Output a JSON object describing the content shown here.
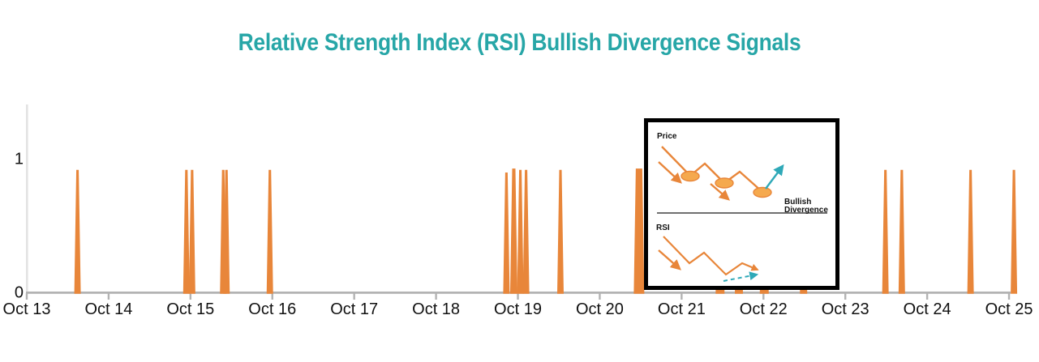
{
  "page": {
    "background": "#FFFFFF"
  },
  "chart_data": {
    "type": "bar",
    "title": "Relative Strength Index (RSI) Bullish Divergence Signals",
    "title_color": "#27A6A7",
    "bar_color": "#E8863A",
    "axis_color": "#B3B3B3",
    "y_axis_line_color": "#E3E3E3",
    "grid": false,
    "legend_position": "none",
    "x_tick_labels": [
      "Oct 13",
      "Oct 14",
      "Oct 15",
      "Oct 16",
      "Oct 17",
      "Oct 18",
      "Oct 19",
      "Oct 20",
      "Oct 21",
      "Oct 22",
      "Oct 23",
      "Oct 24",
      "Oct 25"
    ],
    "x_tick_days": [
      13,
      14,
      15,
      16,
      17,
      18,
      19,
      20,
      21,
      22,
      23,
      24,
      25
    ],
    "y_tick_labels": [
      "0",
      "1"
    ],
    "y_tick_values": [
      0,
      1
    ],
    "ylim": [
      0,
      1.4
    ],
    "xlim_days": [
      13,
      25.1
    ],
    "signals": [
      {
        "day": 13.62,
        "value": 0.92,
        "w": 8
      },
      {
        "day": 14.95,
        "value": 0.92,
        "w": 8
      },
      {
        "day": 15.02,
        "value": 0.92,
        "w": 8
      },
      {
        "day": 15.4,
        "value": 0.92,
        "w": 8
      },
      {
        "day": 15.44,
        "value": 0.92,
        "w": 8
      },
      {
        "day": 15.97,
        "value": 0.92,
        "w": 8
      },
      {
        "day": 18.86,
        "value": 0.9,
        "w": 8
      },
      {
        "day": 18.95,
        "value": 0.93,
        "w": 9
      },
      {
        "day": 19.03,
        "value": 0.92,
        "w": 8
      },
      {
        "day": 19.1,
        "value": 0.92,
        "w": 8
      },
      {
        "day": 19.52,
        "value": 0.92,
        "w": 8
      },
      {
        "day": 20.48,
        "value": 0.93,
        "w": 13
      },
      {
        "day": 21.47,
        "value": 0.92,
        "w": 11
      },
      {
        "day": 21.7,
        "value": 0.92,
        "w": 10
      },
      {
        "day": 22.01,
        "value": 0.92,
        "w": 11
      },
      {
        "day": 22.49,
        "value": 0.92,
        "w": 9
      },
      {
        "day": 23.49,
        "value": 0.92,
        "w": 8
      },
      {
        "day": 23.69,
        "value": 0.92,
        "w": 8
      },
      {
        "day": 24.53,
        "value": 0.92,
        "w": 8
      },
      {
        "day": 25.06,
        "value": 0.92,
        "w": 8
      }
    ]
  },
  "inset": {
    "price_label": "Price",
    "rsi_label": "RSI",
    "annotation_line1": "Bullish",
    "annotation_line2": "Divergence",
    "line_color": "#E8863A",
    "marker_fill": "#F5A94E",
    "arrow_up_color": "#2FA9B8",
    "border_color": "#000000"
  }
}
